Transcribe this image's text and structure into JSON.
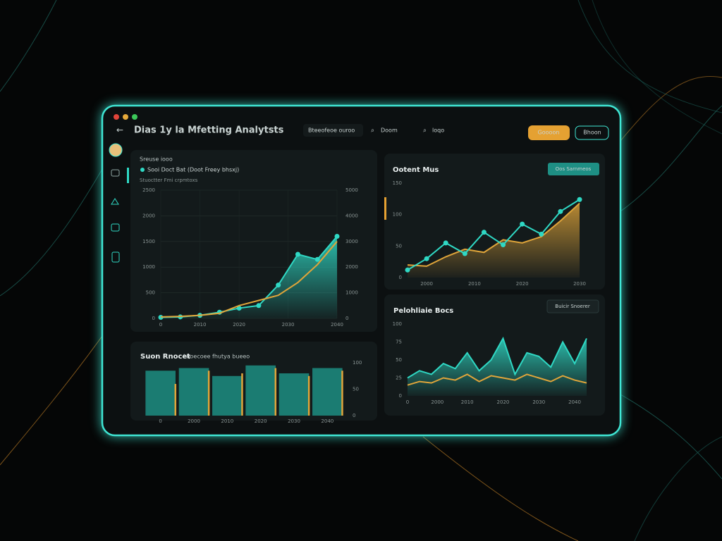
{
  "header": {
    "title": "Dias 1y la Mfetting Analytsts",
    "search": "Bteeofeoe ouroo",
    "items": [
      "Doom",
      "loqo"
    ],
    "buttons": [
      "Goooon",
      "Bhoon"
    ]
  },
  "panels": [
    {
      "title": "Sreuse iooo",
      "legend": "Sooi Doct Bat (Doot Freey bhsxj)",
      "subtitle": "Stuoctter Fmi crpmtoxs",
      "chart": {
        "type": "line",
        "x": [
          0,
          1,
          2,
          3,
          4,
          5,
          6,
          7,
          8,
          9
        ],
        "xlim": [
          0,
          9
        ],
        "xticks": [
          {
            "value": 0,
            "label": "0"
          },
          {
            "value": 2,
            "label": "2010"
          },
          {
            "value": 4,
            "label": "2020"
          },
          {
            "value": 6.5,
            "label": "2030"
          },
          {
            "value": 9,
            "label": "2040"
          }
        ],
        "ylim": [
          0,
          2500
        ],
        "yticks": [
          0,
          500,
          1000,
          1500,
          2000,
          2500
        ],
        "y2lim": [
          0,
          5000
        ],
        "y2ticks": [
          0,
          1000,
          2000,
          3000,
          4000,
          5000
        ],
        "grid": true,
        "series": [
          {
            "color": "#2fd8c4",
            "area": true,
            "markers": true,
            "values": [
              20,
              30,
              60,
              120,
              200,
              250,
              650,
              1250,
              1150,
              1600
            ]
          },
          {
            "color": "#e0a53a",
            "values": [
              30,
              40,
              60,
              100,
              250,
              350,
              450,
              700,
              1050,
              1500
            ]
          }
        ]
      }
    },
    {
      "title": "Ootent Mus",
      "button": "Oos Sarnmeos",
      "chart": {
        "type": "line",
        "x": [
          0,
          1,
          2,
          3,
          4,
          5,
          6,
          7,
          8,
          9
        ],
        "xlim": [
          0,
          9
        ],
        "xticks": [
          {
            "value": 1,
            "label": "2000"
          },
          {
            "value": 3.5,
            "label": "2010"
          },
          {
            "value": 6,
            "label": "2020"
          },
          {
            "value": 9,
            "label": "2030"
          }
        ],
        "ylim": [
          0,
          150
        ],
        "yticks": [
          0,
          50,
          100,
          150
        ],
        "grid": false,
        "series": [
          {
            "color": "#e0a53a",
            "area": true,
            "values": [
              20,
              18,
              33,
              45,
              40,
              60,
              55,
              65,
              90,
              118
            ]
          },
          {
            "color": "#2fd8c4",
            "markers": true,
            "values": [
              12,
              30,
              55,
              38,
              72,
              52,
              85,
              69,
              105,
              124
            ]
          }
        ]
      }
    },
    {
      "title": "Pelohliaie Bocs",
      "button": "Buicir Snoerer",
      "chart": {
        "type": "line",
        "x": [
          0,
          1,
          2,
          3,
          4,
          5,
          6,
          7,
          8,
          9,
          10,
          11,
          12,
          13,
          14,
          15
        ],
        "xlim": [
          0,
          15
        ],
        "xticks": [
          {
            "value": 0,
            "label": "0"
          },
          {
            "value": 2.5,
            "label": "2000"
          },
          {
            "value": 5,
            "label": "2010"
          },
          {
            "value": 8,
            "label": "2020"
          },
          {
            "value": 11,
            "label": "2030"
          },
          {
            "value": 14,
            "label": "2040"
          }
        ],
        "ylim": [
          0,
          100
        ],
        "yticks": [
          0,
          25,
          50,
          75,
          100
        ],
        "grid": false,
        "series": [
          {
            "color": "#2fd8c4",
            "area": true,
            "values": [
              25,
              35,
              30,
              45,
              38,
              60,
              35,
              50,
              80,
              30,
              60,
              55,
              40,
              75,
              45,
              80
            ]
          },
          {
            "color": "#e0a53a",
            "values": [
              15,
              20,
              18,
              25,
              22,
              30,
              20,
              28,
              25,
              22,
              30,
              25,
              20,
              28,
              22,
              18
            ]
          }
        ]
      }
    },
    {
      "title": "Suon Rnocet",
      "subtitle": "Lhoecoee fhutya bueeo",
      "chart": {
        "type": "bar",
        "categories": [
          "0",
          "2000",
          "2010",
          "2020",
          "2030",
          "2040"
        ],
        "ylim": [
          0,
          100
        ],
        "y2ticks": [
          0,
          50,
          100
        ],
        "series": [
          {
            "color": "#1f9e90",
            "values": [
              85,
              90,
              75,
              95,
              80,
              90
            ]
          },
          {
            "color": "#e0a53a",
            "values": [
              60,
              85,
              80,
              90,
              75,
              85
            ]
          }
        ]
      }
    }
  ]
}
